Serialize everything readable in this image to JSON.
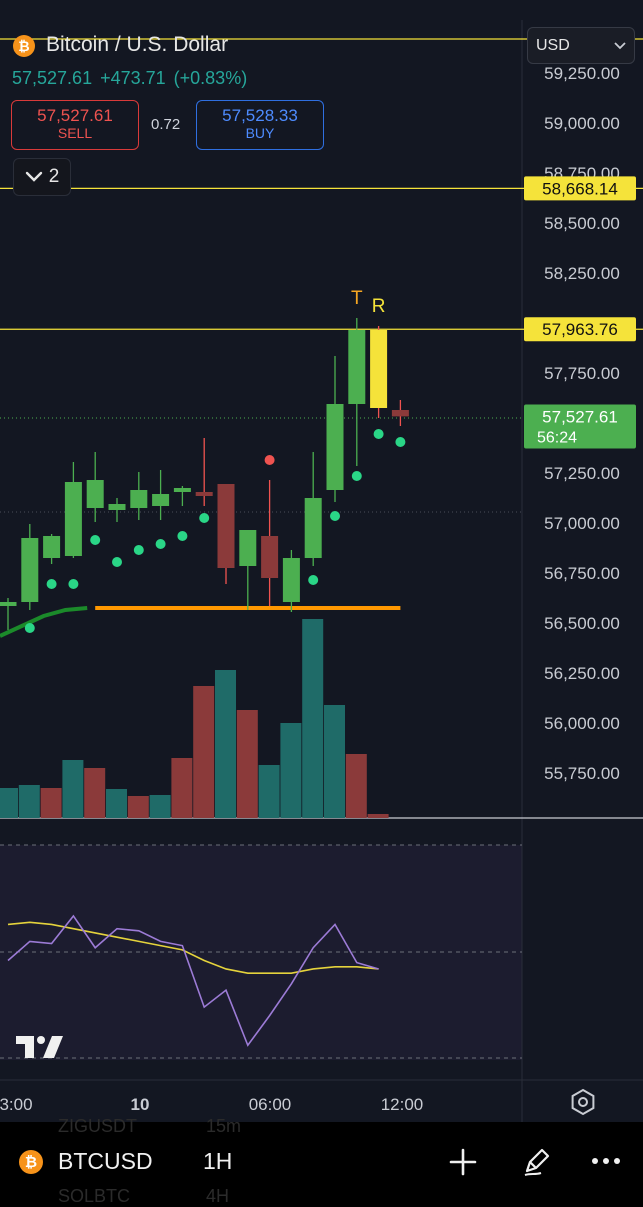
{
  "header": {
    "symbol_title": "Bitcoin / U.S. Dollar",
    "last": "57,527.61",
    "change": "+473.71",
    "change_pct": "(+0.83%)",
    "sell_price": "57,527.61",
    "sell_label": "SELL",
    "spread": "0.72",
    "buy_price": "57,528.33",
    "buy_label": "BUY",
    "collapsed_count": "2",
    "currency": "USD"
  },
  "chart_data": {
    "type": "candlestick",
    "y_ticks": [
      "59,250.00",
      "59,000.00",
      "58,750.00",
      "58,500.00",
      "58,250.00",
      "58,000.00",
      "57,750.00",
      "57,500.00",
      "57,250.00",
      "57,000.00",
      "56,750.00",
      "56,500.00",
      "56,250.00",
      "56,000.00",
      "55,750.00"
    ],
    "x_labels": [
      "3:00",
      "10",
      "06:00",
      "12:00"
    ],
    "horizontal_lines": [
      58668.14,
      57963.76
    ],
    "price_labels": [
      {
        "value": "58,668.14",
        "color": "#f5e33a"
      },
      {
        "value": "57,963.76",
        "color": "#f5e33a"
      },
      {
        "value": "57,527.61",
        "countdown": "56:24",
        "color": "#4caf50"
      }
    ],
    "candles": [
      {
        "o": 56580,
        "h": 56620,
        "l": 56460,
        "c": 56600
      },
      {
        "o": 56600,
        "h": 56990,
        "l": 56560,
        "c": 56920
      },
      {
        "o": 56820,
        "h": 56940,
        "l": 56790,
        "c": 56930
      },
      {
        "o": 56830,
        "h": 57300,
        "l": 56820,
        "c": 57200
      },
      {
        "o": 57070,
        "h": 57350,
        "l": 57000,
        "c": 57210
      },
      {
        "o": 57060,
        "h": 57120,
        "l": 57000,
        "c": 57090
      },
      {
        "o": 57070,
        "h": 57250,
        "l": 57010,
        "c": 57160
      },
      {
        "o": 57080,
        "h": 57260,
        "l": 57010,
        "c": 57140
      },
      {
        "o": 57150,
        "h": 57180,
        "l": 57080,
        "c": 57170
      },
      {
        "o": 57150,
        "h": 57420,
        "l": 57080,
        "c": 57130
      },
      {
        "o": 57190,
        "h": 57190,
        "l": 56690,
        "c": 56770
      },
      {
        "o": 56780,
        "h": 56960,
        "l": 56560,
        "c": 56960
      },
      {
        "o": 56930,
        "h": 57210,
        "l": 56580,
        "c": 56720
      },
      {
        "o": 56600,
        "h": 56860,
        "l": 56550,
        "c": 56820
      },
      {
        "o": 56820,
        "h": 57350,
        "l": 56780,
        "c": 57120
      },
      {
        "o": 57160,
        "h": 57830,
        "l": 57100,
        "c": 57590
      },
      {
        "o": 57590,
        "h": 58020,
        "l": 57280,
        "c": 57960
      },
      {
        "o": 57960,
        "h": 57980,
        "l": 57520,
        "c": 57570
      },
      {
        "o": 57560,
        "h": 57610,
        "l": 57480,
        "c": 57528
      }
    ],
    "highlighted_candle": 17,
    "dots": [
      {
        "i": 1,
        "v": 56470,
        "color": "#2ad687"
      },
      {
        "i": 2,
        "v": 56690,
        "color": "#2ad687"
      },
      {
        "i": 3,
        "v": 56690,
        "color": "#2ad687"
      },
      {
        "i": 4,
        "v": 56910,
        "color": "#2ad687"
      },
      {
        "i": 5,
        "v": 56800,
        "color": "#2ad687"
      },
      {
        "i": 6,
        "v": 56860,
        "color": "#2ad687"
      },
      {
        "i": 7,
        "v": 56890,
        "color": "#2ad687"
      },
      {
        "i": 8,
        "v": 56930,
        "color": "#2ad687"
      },
      {
        "i": 9,
        "v": 57020,
        "color": "#2ad687"
      },
      {
        "i": 12,
        "v": 57310,
        "color": "#ef5350"
      },
      {
        "i": 14,
        "v": 56710,
        "color": "#2ad687"
      },
      {
        "i": 15,
        "v": 57030,
        "color": "#2ad687"
      },
      {
        "i": 16,
        "v": 57230,
        "color": "#2ad687"
      },
      {
        "i": 17,
        "v": 57440,
        "color": "#2ad687"
      },
      {
        "i": 18,
        "v": 57400,
        "color": "#2ad687"
      }
    ],
    "marks": [
      {
        "i": 16,
        "text": "T",
        "color": "#f5a623"
      },
      {
        "i": 17,
        "text": "R",
        "color": "#f5e33a"
      }
    ],
    "support_line": {
      "from": 4,
      "to": 18,
      "value": 56570,
      "color": "#ff9800"
    },
    "moving_average": [
      56430,
      56480,
      56530,
      56560,
      56570
    ],
    "volume": [
      {
        "v": 30,
        "up": true
      },
      {
        "v": 33,
        "up": true
      },
      {
        "v": 30,
        "up": false
      },
      {
        "v": 58,
        "up": true
      },
      {
        "v": 50,
        "up": false
      },
      {
        "v": 29,
        "up": true
      },
      {
        "v": 22,
        "up": false
      },
      {
        "v": 23,
        "up": true
      },
      {
        "v": 60,
        "up": false
      },
      {
        "v": 132,
        "up": false
      },
      {
        "v": 148,
        "up": true
      },
      {
        "v": 108,
        "up": false
      },
      {
        "v": 53,
        "up": true
      },
      {
        "v": 95,
        "up": true
      },
      {
        "v": 199,
        "up": true
      },
      {
        "v": 113,
        "up": true
      },
      {
        "v": 64,
        "up": false
      },
      {
        "v": 4,
        "up": false
      }
    ],
    "oscillator": {
      "line": [
        46,
        55,
        54,
        67,
        52,
        61,
        60,
        55,
        53,
        24,
        32,
        6,
        20,
        35,
        52,
        63,
        45,
        42
      ],
      "signal": [
        63,
        64,
        63,
        61,
        59,
        57,
        55,
        53,
        51,
        46,
        42,
        40,
        40,
        40,
        42,
        43,
        43,
        42
      ]
    }
  },
  "bottom_bar": {
    "symbol": "BTCUSD",
    "interval": "1H",
    "ghost_row1_symbol": "ZIGUSDT",
    "ghost_row1_interval": "15m",
    "ghost_row2_symbol": "SOLBTC",
    "ghost_row2_interval": "4H"
  },
  "colors": {
    "up": "#4caf50",
    "down": "#8b3a3a",
    "volume_up": "#1f6b68",
    "volume_down": "#8b3a3a",
    "level_line": "#f5e33a",
    "oscillator_line": "#9c7bd6",
    "signal_line": "#e5d33c",
    "accent": "#2962ff"
  }
}
